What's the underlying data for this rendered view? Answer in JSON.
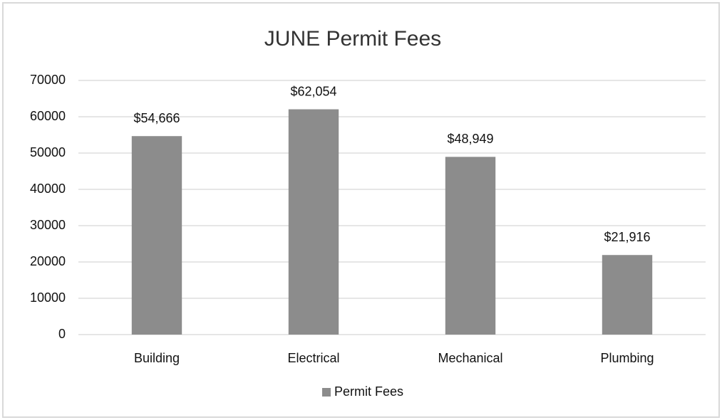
{
  "chart_data": {
    "type": "bar",
    "title": "JUNE Permit Fees",
    "categories": [
      "Building",
      "Electrical",
      "Mechanical",
      "Plumbing"
    ],
    "series": [
      {
        "name": "Permit Fees",
        "color": "#8c8c8c",
        "values": [
          54666,
          62054,
          48949,
          21916
        ],
        "value_labels": [
          "$54,666",
          "$62,054",
          "$48,949",
          "$21,916"
        ]
      }
    ],
    "ylim": [
      0,
      70000
    ],
    "yticks": [
      0,
      10000,
      20000,
      30000,
      40000,
      50000,
      60000,
      70000
    ],
    "grid": true,
    "legend": "bottom"
  }
}
